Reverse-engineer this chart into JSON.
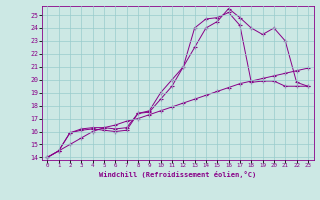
{
  "xlabel": "Windchill (Refroidissement éolien,°C)",
  "bg_color": "#cce8e4",
  "line_color": "#880088",
  "grid_color": "#99cccc",
  "xlim": [
    -0.5,
    23.5
  ],
  "ylim": [
    13.8,
    25.7
  ],
  "yticks": [
    14,
    15,
    16,
    17,
    18,
    19,
    20,
    21,
    22,
    23,
    24,
    25
  ],
  "xticks": [
    0,
    1,
    2,
    3,
    4,
    5,
    6,
    7,
    8,
    9,
    10,
    11,
    12,
    13,
    14,
    15,
    16,
    17,
    18,
    19,
    20,
    21,
    22,
    23
  ],
  "line1_x": [
    0,
    1,
    2,
    3,
    4,
    5,
    6,
    7,
    8,
    9,
    10,
    11,
    12,
    13,
    14,
    15,
    16,
    17,
    18,
    19,
    20,
    21,
    22,
    23
  ],
  "line1_y": [
    14.0,
    14.5,
    15.9,
    16.1,
    16.2,
    16.1,
    16.0,
    16.1,
    17.4,
    17.5,
    18.5,
    19.5,
    21.0,
    24.0,
    24.7,
    24.8,
    25.2,
    24.2,
    19.8,
    19.9,
    19.9,
    19.5,
    19.5,
    19.5
  ],
  "line2_x": [
    0,
    1,
    2,
    3,
    4,
    5,
    6,
    7,
    8,
    9,
    10,
    11,
    12,
    13,
    14,
    15,
    16,
    17,
    18,
    19,
    20,
    21,
    22,
    23
  ],
  "line2_y": [
    14.0,
    14.5,
    15.9,
    16.2,
    16.3,
    16.3,
    16.2,
    16.3,
    17.4,
    17.6,
    19.0,
    20.0,
    21.0,
    22.5,
    24.0,
    24.5,
    25.5,
    24.8,
    24.0,
    23.5,
    24.0,
    23.0,
    19.8,
    19.5
  ],
  "line3_x": [
    0,
    1,
    2,
    3,
    4,
    5,
    6,
    7,
    8,
    9,
    10,
    11,
    12,
    13,
    14,
    15,
    16,
    17,
    18,
    19,
    20,
    21,
    22,
    23
  ],
  "line3_y": [
    14.0,
    14.5,
    15.0,
    15.5,
    16.0,
    16.3,
    16.5,
    16.8,
    17.0,
    17.3,
    17.6,
    17.9,
    18.2,
    18.5,
    18.8,
    19.1,
    19.4,
    19.7,
    19.9,
    20.1,
    20.3,
    20.5,
    20.7,
    20.9
  ]
}
